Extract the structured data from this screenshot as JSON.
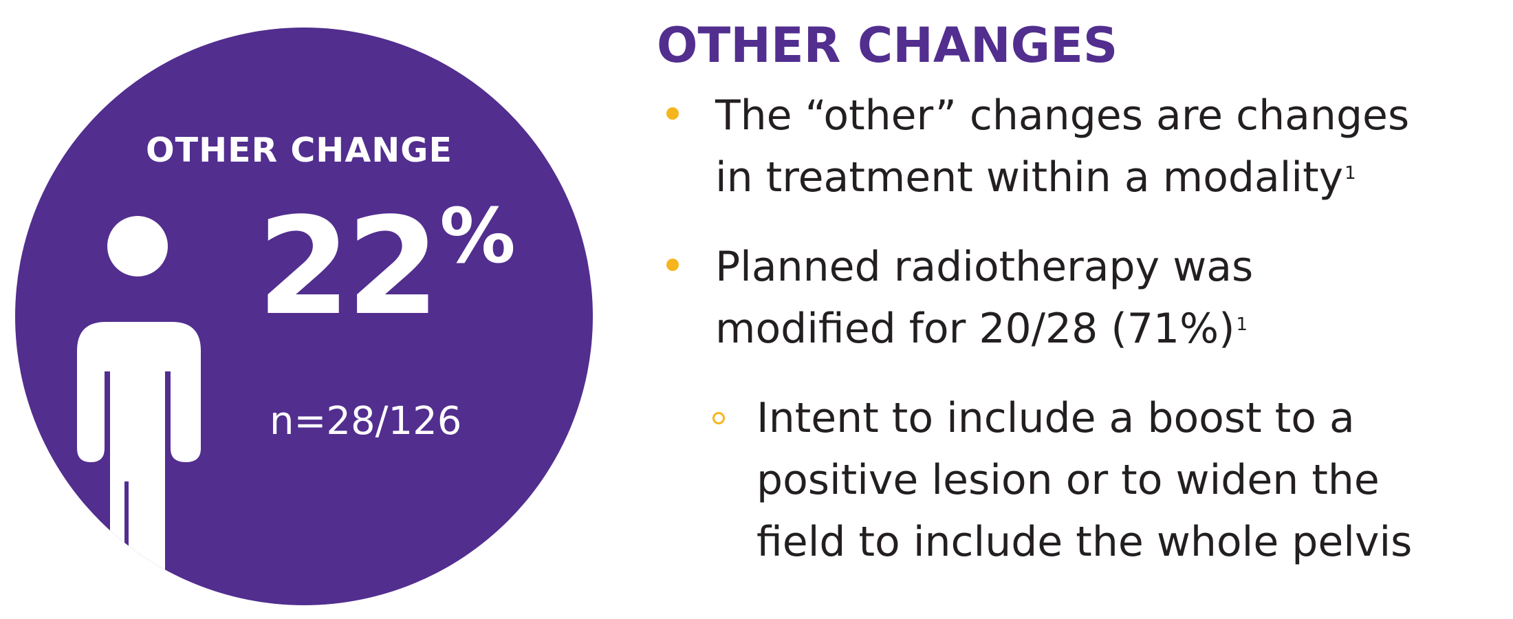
{
  "infographic": {
    "label": "OTHER CHANGE",
    "value": "22",
    "unit": "%",
    "n": "n=28/126",
    "colors": {
      "circle": "#522e8f",
      "text": "#ffffff"
    },
    "icon": "person-icon"
  },
  "content": {
    "title": "OTHER CHANGES",
    "bullets": [
      {
        "lines": [
          "The “other” changes are changes",
          "in treatment within a modality"
        ],
        "ref": "1"
      },
      {
        "lines": [
          "Planned radiotherapy was",
          "modified for 20/28 (71%)"
        ],
        "ref": "1",
        "sub_bullets": [
          {
            "lines": [
              "Intent to include a boost to a",
              "positive lesion or to widen the",
              "field to include the whole pelvis"
            ]
          }
        ]
      }
    ],
    "colors": {
      "title": "#522e8f",
      "body_text": "#231f20",
      "bullet_marker": "#f6b51c"
    }
  }
}
